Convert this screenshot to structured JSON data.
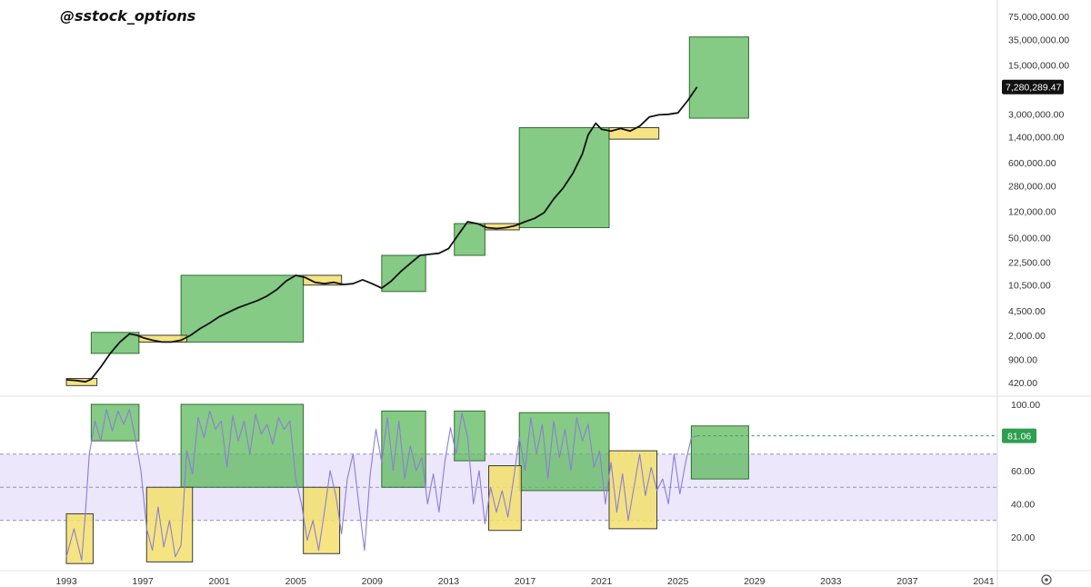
{
  "header": {
    "watermark": "@sstock_options"
  },
  "colors": {
    "price_line": "#111111",
    "rsi_line": "#8c7fd6",
    "green_box": "#5cb85c",
    "yellow_box": "#f3df6b",
    "rsi_band": "#ece7fb",
    "current_price_tag": "#111111",
    "rsi_tag": "#2e9e4f"
  },
  "chart_data": [
    {
      "type": "line",
      "scale": "log",
      "y_ticks": [
        "75,000,000.00",
        "35,000,000.00",
        "15,000,000.00",
        "3,000,000.00",
        "1,400,000.00",
        "600,000.00",
        "280,000.00",
        "120,000.00",
        "50,000.00",
        "22,500.00",
        "10,500.00",
        "4,500.00",
        "2,000.00",
        "900.00",
        "420.00"
      ],
      "y_tick_values": [
        75000000,
        35000000,
        15000000,
        3000000,
        1400000,
        600000,
        280000,
        120000,
        50000,
        22500,
        10500,
        4500,
        2000,
        900,
        420
      ],
      "current_value_label": "7,280,289.47",
      "current_value": 7280289.47,
      "series": [
        {
          "x": [
            1993.0,
            1993.5,
            1994.0,
            1994.3,
            1994.8,
            1995.3,
            1995.8,
            1996.3,
            1996.7,
            1997.0,
            1997.5,
            1998.0,
            1998.5,
            1999.0,
            1999.5,
            2000.0,
            2000.5,
            2001.0,
            2001.5,
            2002.0,
            2002.5,
            2003.0,
            2003.5,
            2004.0,
            2004.5,
            2005.0,
            2005.5,
            2006.0,
            2006.5,
            2007.0,
            2007.5,
            2008.0,
            2008.5,
            2009.0,
            2009.5,
            2010.0,
            2010.5,
            2011.0,
            2011.5,
            2012.0,
            2012.5,
            2013.0,
            2013.5,
            2014.0,
            2014.5,
            2015.0,
            2015.5,
            2016.0,
            2016.5,
            2017.0,
            2017.5,
            2018.0,
            2018.5,
            2019.0,
            2019.5,
            2020.0,
            2020.3,
            2020.7,
            2021.0,
            2021.5,
            2022.0,
            2022.5,
            2023.0,
            2023.5,
            2024.0,
            2024.5,
            2025.0,
            2025.5,
            2026.0
          ],
          "y": [
            460,
            450,
            430,
            470,
            700,
            1100,
            1600,
            2100,
            2000,
            1850,
            1700,
            1600,
            1600,
            1700,
            2000,
            2500,
            3000,
            3700,
            4300,
            5000,
            5600,
            6300,
            7300,
            9000,
            12000,
            14500,
            13500,
            11500,
            11000,
            11500,
            10700,
            11000,
            12500,
            11000,
            9500,
            12000,
            16500,
            21500,
            28000,
            29000,
            30000,
            35000,
            55000,
            85000,
            80000,
            70000,
            68000,
            70000,
            75000,
            85000,
            95000,
            115000,
            180000,
            260000,
            420000,
            800000,
            1500000,
            2200000,
            1800000,
            1700000,
            1850000,
            1700000,
            2000000,
            2700000,
            2900000,
            2950000,
            3100000,
            4600000,
            7280289.47
          ]
        }
      ],
      "annotations": {
        "green_boxes": [
          {
            "x0": 1994.3,
            "x1": 1996.8,
            "y0": 1100,
            "y1": 2200
          },
          {
            "x0": 1999.0,
            "x1": 2005.4,
            "y0": 1600,
            "y1": 14500
          },
          {
            "x0": 2009.5,
            "x1": 2011.8,
            "y0": 8500,
            "y1": 28000
          },
          {
            "x0": 2013.3,
            "x1": 2014.9,
            "y0": 28000,
            "y1": 80000
          },
          {
            "x0": 2016.7,
            "x1": 2021.4,
            "y0": 70000,
            "y1": 1900000
          },
          {
            "x0": 2025.6,
            "x1": 2028.7,
            "y0": 2600000,
            "y1": 38000000
          }
        ],
        "yellow_boxes": [
          {
            "x0": 1993.0,
            "x1": 1994.6,
            "y0": 380,
            "y1": 480
          },
          {
            "x0": 1996.8,
            "x1": 1999.3,
            "y0": 1600,
            "y1": 2000
          },
          {
            "x0": 2005.4,
            "x1": 2007.4,
            "y0": 10500,
            "y1": 14500
          },
          {
            "x0": 2014.9,
            "x1": 2016.7,
            "y0": 65000,
            "y1": 80000
          },
          {
            "x0": 2021.4,
            "x1": 2024.0,
            "y0": 1300000,
            "y1": 1900000
          }
        ]
      }
    },
    {
      "type": "line",
      "y_ticks": [
        "100.00",
        "60.00",
        "40.00",
        "20.00"
      ],
      "y_tick_values": [
        100,
        60,
        40,
        20
      ],
      "ylim": [
        0,
        105
      ],
      "band": [
        30,
        70
      ],
      "mid_line": 50,
      "current_value_label": "81.06",
      "current_value": 81.06,
      "series": [
        {
          "x": [
            1993.0,
            1993.4,
            1993.8,
            1994.0,
            1994.2,
            1994.5,
            1994.8,
            1995.1,
            1995.4,
            1995.7,
            1996.0,
            1996.3,
            1996.6,
            1996.9,
            1997.2,
            1997.5,
            1997.8,
            1998.1,
            1998.4,
            1998.7,
            1999.0,
            1999.3,
            1999.6,
            1999.9,
            2000.2,
            2000.5,
            2000.8,
            2001.1,
            2001.4,
            2001.7,
            2002.0,
            2002.3,
            2002.6,
            2002.9,
            2003.2,
            2003.5,
            2003.8,
            2004.1,
            2004.4,
            2004.7,
            2005.0,
            2005.3,
            2005.6,
            2005.9,
            2006.2,
            2006.5,
            2006.8,
            2007.1,
            2007.4,
            2007.7,
            2008.0,
            2008.3,
            2008.6,
            2008.9,
            2009.2,
            2009.5,
            2009.8,
            2010.1,
            2010.4,
            2010.7,
            2011.0,
            2011.3,
            2011.6,
            2011.9,
            2012.2,
            2012.5,
            2012.8,
            2013.1,
            2013.4,
            2013.7,
            2014.0,
            2014.3,
            2014.6,
            2014.9,
            2015.2,
            2015.5,
            2015.8,
            2016.1,
            2016.4,
            2016.7,
            2017.0,
            2017.3,
            2017.6,
            2017.9,
            2018.2,
            2018.5,
            2018.8,
            2019.1,
            2019.4,
            2019.7,
            2020.0,
            2020.3,
            2020.6,
            2020.9,
            2021.2,
            2021.5,
            2021.8,
            2022.1,
            2022.4,
            2022.7,
            2023.0,
            2023.3,
            2023.6,
            2023.9,
            2024.2,
            2024.5,
            2024.8,
            2025.1,
            2025.4,
            2025.7,
            2026.0
          ],
          "y": [
            8,
            25,
            6,
            35,
            70,
            90,
            78,
            97,
            84,
            96,
            88,
            97,
            80,
            60,
            25,
            12,
            38,
            14,
            30,
            8,
            15,
            72,
            58,
            92,
            80,
            96,
            85,
            90,
            62,
            93,
            78,
            90,
            70,
            94,
            82,
            88,
            76,
            92,
            85,
            90,
            55,
            40,
            18,
            30,
            12,
            35,
            60,
            45,
            22,
            55,
            70,
            40,
            12,
            58,
            85,
            65,
            92,
            60,
            90,
            55,
            75,
            60,
            68,
            40,
            58,
            35,
            65,
            86,
            70,
            95,
            80,
            40,
            60,
            28,
            50,
            35,
            48,
            32,
            55,
            80,
            60,
            92,
            70,
            88,
            55,
            90,
            68,
            85,
            60,
            92,
            78,
            88,
            62,
            72,
            40,
            65,
            35,
            58,
            30,
            50,
            70,
            45,
            62,
            48,
            55,
            40,
            70,
            46,
            65,
            80,
            81.06
          ]
        }
      ],
      "annotations": {
        "green_boxes": [
          {
            "x0": 1994.3,
            "x1": 1996.8,
            "y0": 78,
            "y1": 100
          },
          {
            "x0": 1999.0,
            "x1": 2005.4,
            "y0": 50,
            "y1": 100
          },
          {
            "x0": 2009.5,
            "x1": 2011.8,
            "y0": 50,
            "y1": 96
          },
          {
            "x0": 2013.3,
            "x1": 2014.9,
            "y0": 66,
            "y1": 96
          },
          {
            "x0": 2016.7,
            "x1": 2021.4,
            "y0": 48,
            "y1": 95
          },
          {
            "x0": 2025.7,
            "x1": 2028.7,
            "y0": 55,
            "y1": 87
          }
        ],
        "yellow_boxes": [
          {
            "x0": 1993.0,
            "x1": 1994.4,
            "y0": 4,
            "y1": 34
          },
          {
            "x0": 1997.2,
            "x1": 1999.6,
            "y0": 5,
            "y1": 50
          },
          {
            "x0": 2005.4,
            "x1": 2007.3,
            "y0": 10,
            "y1": 50
          },
          {
            "x0": 2015.1,
            "x1": 2016.8,
            "y0": 24,
            "y1": 63
          },
          {
            "x0": 2021.4,
            "x1": 2023.9,
            "y0": 25,
            "y1": 72
          }
        ]
      }
    }
  ],
  "x_axis": {
    "ticks": [
      "1993",
      "1997",
      "2001",
      "2005",
      "2009",
      "2013",
      "2017",
      "2021",
      "2025",
      "2029",
      "2033",
      "2037",
      "2041"
    ],
    "tick_values": [
      1993,
      1997,
      2001,
      2005,
      2009,
      2013,
      2017,
      2021,
      2025,
      2029,
      2033,
      2037,
      2041
    ],
    "range": [
      1992.2,
      2042.3
    ]
  },
  "settings_icon": "gear-icon"
}
